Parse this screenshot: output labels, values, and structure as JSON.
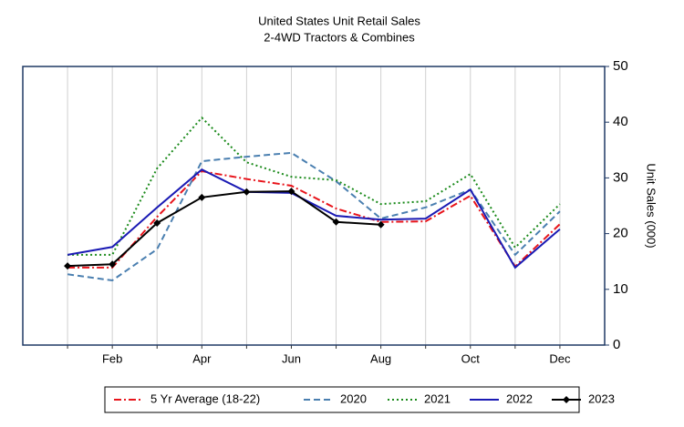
{
  "chart_data": {
    "type": "line",
    "title": "United States Unit Retail Sales",
    "subtitle": "2-4WD Tractors & Combines",
    "y_label": "Unit Sales (000)",
    "categories": [
      null,
      "Feb",
      null,
      "Apr",
      null,
      "Jun",
      null,
      "Aug",
      null,
      "Oct",
      null,
      "Dec"
    ],
    "ylim": [
      0,
      50
    ],
    "yticks": [
      0,
      10,
      20,
      30,
      40,
      50
    ],
    "grid": "x",
    "legend": "bottom",
    "series": [
      {
        "name": "5 Yr Average (18-22)",
        "color": "#e8141b",
        "dash": "dash-dot",
        "values": [
          13.9,
          13.9,
          23,
          31.2,
          29.8,
          28.6,
          24.5,
          22.1,
          22.2,
          26.8,
          14.1,
          21.7
        ]
      },
      {
        "name": "2020",
        "color": "#4a7fb0",
        "dash": "dashed",
        "values": [
          12.7,
          11.6,
          17.2,
          33,
          33.8,
          34.5,
          29.4,
          22.7,
          24.7,
          27.9,
          16.2,
          24
        ]
      },
      {
        "name": "2021",
        "color": "#1a8a1a",
        "dash": "dotted",
        "values": [
          16.2,
          16.2,
          31.7,
          40.8,
          32.8,
          30.2,
          29.6,
          25.3,
          25.8,
          30.7,
          17.5,
          25.3
        ]
      },
      {
        "name": "2022",
        "color": "#1a1ab4",
        "dash": "solid",
        "values": [
          16.2,
          17.6,
          24.7,
          31.5,
          27.5,
          27.3,
          23.2,
          22.5,
          22.7,
          27.9,
          13.9,
          20.8
        ]
      },
      {
        "name": "2023",
        "color": "#000000",
        "dash": "solid",
        "marker": "diamond",
        "values": [
          14.2,
          14.5,
          21.9,
          26.5,
          27.5,
          27.6,
          22.1,
          21.6,
          null,
          null,
          null,
          null
        ]
      }
    ]
  }
}
